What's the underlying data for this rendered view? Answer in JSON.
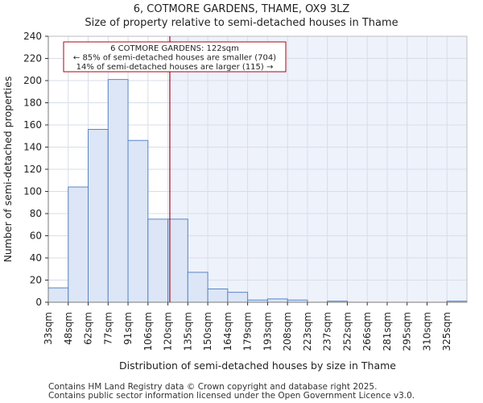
{
  "chart_data": {
    "type": "bar",
    "title": "6, COTMORE GARDENS, THAME, OX9 3LZ",
    "subtitle": "Size of property relative to semi-detached houses in Thame",
    "xlabel": "Distribution of semi-detached houses by size in Thame",
    "ylabel": "Number of semi-detached properties",
    "categories": [
      "33sqm",
      "48sqm",
      "62sqm",
      "77sqm",
      "91sqm",
      "106sqm",
      "120sqm",
      "135sqm",
      "150sqm",
      "164sqm",
      "179sqm",
      "193sqm",
      "208sqm",
      "223sqm",
      "237sqm",
      "252sqm",
      "266sqm",
      "281sqm",
      "295sqm",
      "310sqm",
      "325sqm"
    ],
    "values": [
      13,
      104,
      156,
      201,
      146,
      75,
      75,
      27,
      12,
      9,
      2,
      3,
      2,
      0,
      1,
      0,
      0,
      0,
      0,
      0,
      1
    ],
    "ylim": [
      0,
      240
    ],
    "yticks": [
      0,
      20,
      40,
      60,
      80,
      100,
      120,
      140,
      160,
      180,
      200,
      220,
      240
    ],
    "grid": true,
    "property_marker_sqm": 122,
    "annotation": {
      "line1": "6 COTMORE GARDENS: 122sqm",
      "line2": "← 85% of semi-detached houses are smaller (704)",
      "line3": "14% of semi-detached houses are larger (115) →"
    },
    "colors": {
      "bar_fill": "#dce6f6",
      "bar_edge": "#5a86c5",
      "marker": "#b0000f",
      "highlight_bg": "#eef2fb",
      "grid": "#d8dde8"
    }
  },
  "footer": {
    "line1": "Contains HM Land Registry data © Crown copyright and database right 2025.",
    "line2": "Contains public sector information licensed under the Open Government Licence v3.0."
  }
}
